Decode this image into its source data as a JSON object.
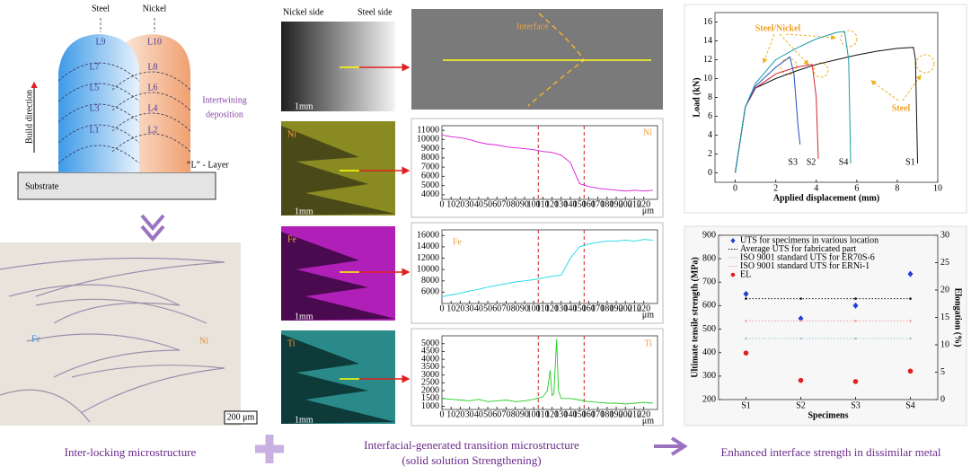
{
  "diagram": {
    "steel": "Steel",
    "nickel": "Nickel",
    "steel_layers": [
      "L9",
      "L7",
      "L5",
      "L3",
      "L1"
    ],
    "nickel_layers": [
      "L10",
      "L8",
      "L6",
      "L4",
      "L2"
    ],
    "build_direction": "Build direction",
    "deposition": [
      "Intertwining",
      "deposition"
    ],
    "layer_note": "“L” - Layer",
    "substrate": "Substrate"
  },
  "micrograph": {
    "left": "Fe",
    "right": "Ni",
    "scale": "200 μm"
  },
  "sem": {
    "left": "Nickel side",
    "right": "Steel side",
    "scale": "1mm",
    "interface": "Interface",
    "maps": [
      {
        "label": "Ni",
        "scale": "1mm"
      },
      {
        "label": "Fe",
        "scale": "1mm"
      },
      {
        "label": "Ti",
        "scale": "1mm"
      }
    ]
  },
  "chart_data": [
    {
      "type": "line",
      "title": "Ni",
      "x_unit": "μm",
      "color": "#d81ad8",
      "xlim": [
        0,
        235
      ],
      "ylim": [
        3500,
        11500
      ],
      "xticks": [
        0,
        10,
        20,
        30,
        40,
        50,
        60,
        70,
        80,
        90,
        100,
        110,
        120,
        130,
        140,
        150,
        160,
        170,
        180,
        190,
        200,
        210,
        220
      ],
      "yticks": [
        4000,
        5000,
        6000,
        7000,
        8000,
        9000,
        10000,
        11000
      ],
      "boundaries": [
        105,
        155
      ],
      "x": [
        0,
        10,
        20,
        30,
        40,
        50,
        60,
        70,
        80,
        90,
        100,
        110,
        120,
        130,
        140,
        150,
        160,
        170,
        180,
        190,
        200,
        210,
        220,
        230
      ],
      "series": [
        {
          "color": "#d81ad8",
          "values": [
            10500,
            10300,
            10200,
            10000,
            9700,
            9500,
            9400,
            9200,
            9100,
            9000,
            8900,
            8700,
            8600,
            8300,
            7500,
            5200,
            4900,
            4700,
            4600,
            4500,
            4400,
            4500,
            4400,
            4500
          ]
        }
      ]
    },
    {
      "type": "line",
      "title": "Fe",
      "x_unit": "μm",
      "xlim": [
        0,
        235
      ],
      "ylim": [
        4000,
        17000
      ],
      "xticks": [
        0,
        10,
        20,
        30,
        40,
        50,
        60,
        70,
        80,
        90,
        100,
        110,
        120,
        130,
        140,
        150,
        160,
        170,
        180,
        190,
        200,
        210,
        220
      ],
      "yticks": [
        6000,
        8000,
        10000,
        12000,
        14000,
        16000
      ],
      "boundaries": [
        105,
        155
      ],
      "x": [
        0,
        10,
        20,
        30,
        40,
        50,
        60,
        70,
        80,
        90,
        100,
        110,
        120,
        130,
        140,
        150,
        160,
        170,
        180,
        190,
        200,
        210,
        220,
        230
      ],
      "series": [
        {
          "color": "#1ad8e8",
          "values": [
            5200,
            5500,
            5800,
            6200,
            6500,
            6900,
            7200,
            7500,
            7800,
            8000,
            8200,
            8500,
            8800,
            9000,
            12000,
            14000,
            14500,
            14800,
            15000,
            15000,
            15200,
            15000,
            15300,
            15200
          ]
        }
      ]
    },
    {
      "type": "line",
      "title": "Ti",
      "x_unit": "μm",
      "xlim": [
        0,
        235
      ],
      "ylim": [
        800,
        5500
      ],
      "xticks": [
        0,
        10,
        20,
        30,
        40,
        50,
        60,
        70,
        80,
        90,
        100,
        110,
        120,
        130,
        140,
        150,
        160,
        170,
        180,
        190,
        200,
        210,
        220
      ],
      "yticks": [
        1000,
        1500,
        2000,
        2500,
        3000,
        3500,
        4000,
        4500,
        5000
      ],
      "boundaries": [
        105,
        155
      ],
      "x": [
        0,
        10,
        20,
        30,
        40,
        50,
        60,
        70,
        80,
        90,
        100,
        110,
        115,
        118,
        120,
        122,
        125,
        127,
        130,
        140,
        150,
        160,
        170,
        180,
        190,
        200,
        210,
        220,
        230
      ],
      "series": [
        {
          "color": "#22cc22",
          "values": [
            1500,
            1450,
            1400,
            1350,
            1450,
            1300,
            1350,
            1400,
            1300,
            1350,
            1450,
            1600,
            2000,
            3300,
            1700,
            1800,
            5300,
            2000,
            1500,
            1500,
            1400,
            1300,
            1250,
            1200,
            1200,
            1150,
            1200,
            1250,
            1200
          ]
        }
      ]
    },
    {
      "type": "line",
      "x_label": "Applied displacement (mm)",
      "y_label": "Load (kN)",
      "annotations": [
        "Steel/Nickel",
        "Steel"
      ],
      "xlim": [
        -1,
        10
      ],
      "ylim": [
        -1,
        17
      ],
      "xticks": [
        0,
        2,
        4,
        6,
        8,
        10
      ],
      "yticks": [
        0,
        2,
        4,
        6,
        8,
        10,
        12,
        14,
        16
      ],
      "series": [
        {
          "name": "S1",
          "color": "#111111",
          "x": [
            0,
            0.5,
            1,
            2,
            3,
            4,
            5,
            6,
            7,
            8,
            8.8,
            8.9,
            9.0
          ],
          "values": [
            0,
            7,
            9,
            10,
            10.8,
            11.5,
            12,
            12.5,
            12.9,
            13.2,
            13.3,
            12,
            1
          ]
        },
        {
          "name": "S2",
          "color": "#d42030",
          "x": [
            0,
            0.5,
            1,
            2,
            3,
            3.8,
            4.0,
            4.1
          ],
          "values": [
            0,
            7,
            9,
            10.5,
            11.2,
            11.5,
            8,
            1.5
          ]
        },
        {
          "name": "S3",
          "color": "#1f4fbf",
          "x": [
            0,
            0.5,
            1,
            2,
            2.7,
            2.9,
            3.1,
            3.2
          ],
          "values": [
            0,
            7,
            9.2,
            11.2,
            12.3,
            10.5,
            5,
            3
          ]
        },
        {
          "name": "S4",
          "color": "#1a9aa8",
          "x": [
            0,
            0.5,
            1,
            2,
            3,
            4,
            5,
            5.4,
            5.6,
            5.7
          ],
          "values": [
            0,
            7,
            9.5,
            12,
            13.2,
            14.2,
            14.9,
            15,
            12,
            1
          ]
        }
      ]
    },
    {
      "type": "scatter",
      "x_label": "Specimens",
      "y_label": "Ultimate tensile strength (MPa)",
      "y2_label": "Elongation (%)",
      "categories": [
        "S1",
        "S2",
        "S3",
        "S4"
      ],
      "ylim": [
        200,
        900
      ],
      "yticks": [
        200,
        300,
        400,
        500,
        600,
        700,
        800,
        900
      ],
      "y2lim": [
        0,
        30
      ],
      "y2ticks": [
        0,
        5,
        10,
        15,
        20,
        25,
        30
      ],
      "series": [
        {
          "name": "UTS for specimens in various location",
          "color": "#1f3fd0",
          "style": "diamond",
          "values": [
            650,
            545,
            600,
            735
          ]
        },
        {
          "name": "Average UTS for fabricated  part",
          "color": "#111111",
          "style": "dotted",
          "values": [
            630,
            630,
            630,
            630
          ]
        },
        {
          "name": "ISO 9001 standard UTS for ER70S-6",
          "color": "#9cc8d0",
          "style": "faint",
          "values": [
            460,
            460,
            460,
            460
          ]
        },
        {
          "name": "ISO 9001 standard UTS for ERNi-1",
          "color": "#f0a0a0",
          "style": "faint",
          "values": [
            535,
            535,
            535,
            535
          ]
        },
        {
          "name": "EL",
          "color": "#e02020",
          "style": "dot",
          "axis": "y2",
          "values": [
            8.5,
            3.5,
            3.3,
            5.2
          ]
        }
      ]
    }
  ],
  "captions": {
    "left": "Inter-locking microstructure",
    "middle": [
      "Interfacial-generated transition microstructure",
      "(solid solution Strengthening)"
    ],
    "right": "Enhanced interface strength in dissimilar metal"
  }
}
